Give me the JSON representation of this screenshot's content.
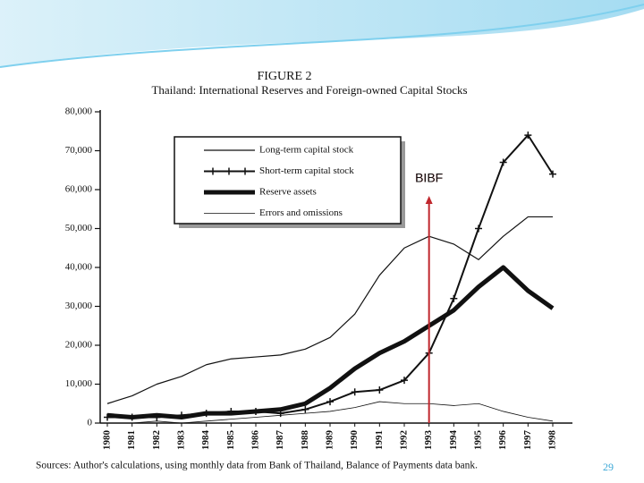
{
  "chart_data": {
    "type": "line",
    "title": "FIGURE 2",
    "subtitle": "Thailand: International Reserves and Foreign-owned Capital Stocks",
    "source": "Sources: Author's calculations, using monthly data from Bank of Thailand, Balance of Payments data bank.",
    "categories": [
      "1980",
      "1981",
      "1982",
      "1983",
      "1984",
      "1985",
      "1986",
      "1987",
      "1988",
      "1989",
      "1990",
      "1991",
      "1992",
      "1993",
      "1994",
      "1995",
      "1996",
      "1997",
      "1998"
    ],
    "series": [
      {
        "name": "Long-term capital stock",
        "color": "#111111",
        "width": 1.2,
        "marker": "none",
        "values": [
          5000,
          7000,
          10000,
          12000,
          15000,
          16500,
          17000,
          17500,
          19000,
          22000,
          28000,
          38000,
          45000,
          48000,
          46000,
          42000,
          48000,
          53000,
          53000
        ]
      },
      {
        "name": "Short-term capital stock",
        "color": "#111111",
        "width": 2,
        "marker": "plus",
        "values": [
          1500,
          1500,
          1500,
          2000,
          2500,
          3000,
          3000,
          2500,
          3500,
          5500,
          8000,
          8500,
          11000,
          18000,
          32000,
          50000,
          67000,
          74000,
          64000
        ]
      },
      {
        "name": "Reserve assets",
        "color": "#111111",
        "width": 5,
        "marker": "none",
        "values": [
          2000,
          1500,
          2000,
          1500,
          2500,
          2500,
          3000,
          3500,
          5000,
          9000,
          14000,
          18000,
          21000,
          25000,
          29000,
          35000,
          40000,
          34000,
          29500
        ]
      },
      {
        "name": "Errors and omissions",
        "color": "#111111",
        "width": 0.8,
        "marker": "none",
        "values": [
          0,
          0,
          500,
          0,
          500,
          1000,
          1500,
          2000,
          2500,
          3000,
          4000,
          5500,
          5000,
          5000,
          4500,
          5000,
          3000,
          1500,
          500
        ]
      }
    ],
    "ylim": [
      0,
      80000
    ],
    "yticks": [
      0,
      {
        "value": 10000,
        "label": "10,000"
      },
      {
        "value": 20000,
        "label": "20,000"
      },
      {
        "value": 30000,
        "label": "30,000"
      },
      {
        "value": 40000,
        "label": "40,000"
      },
      {
        "value": 50000,
        "label": "50,000"
      },
      {
        "value": 60000,
        "label": "60,000"
      },
      {
        "value": 70000,
        "label": "70,000"
      },
      {
        "value": 80000,
        "label": "80,000"
      }
    ],
    "legend": "upper-left",
    "annotation": {
      "text": "BIBF",
      "x": "1993",
      "color": "#c0272d"
    }
  },
  "page_number": "29"
}
